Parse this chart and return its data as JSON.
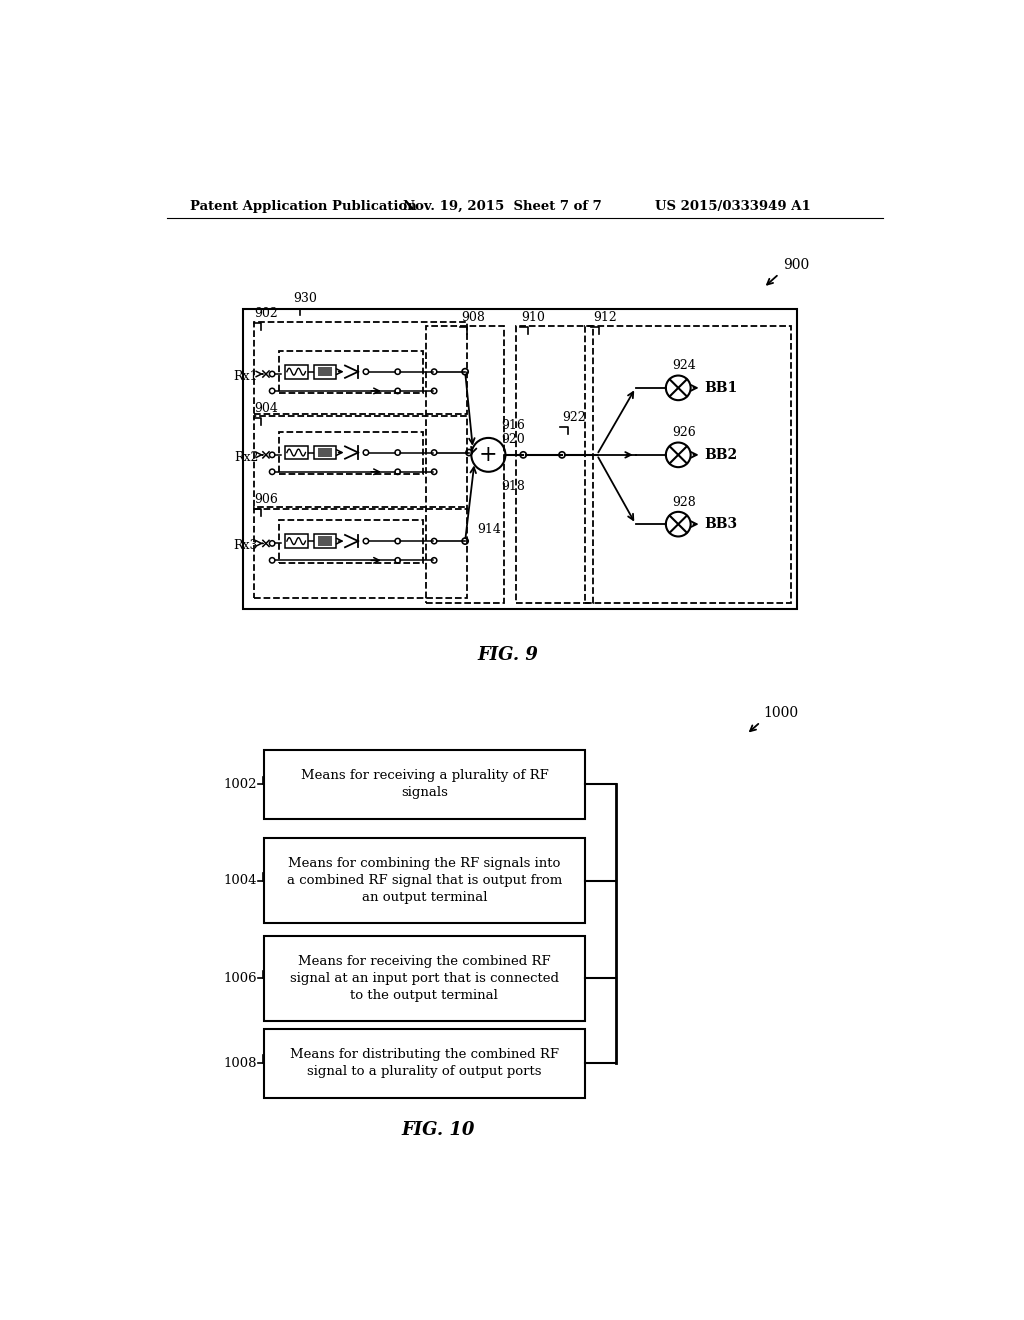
{
  "bg_color": "#ffffff",
  "header_left": "Patent Application Publication",
  "header_mid": "Nov. 19, 2015  Sheet 7 of 7",
  "header_right": "US 2015/0333949 A1",
  "fig9_label": "FIG. 9",
  "fig10_label": "FIG. 10",
  "label_900": "900",
  "label_930": "930",
  "label_902": "902",
  "label_904": "904",
  "label_906": "906",
  "label_908": "908",
  "label_910": "910",
  "label_912": "912",
  "label_914": "914",
  "label_916": "916",
  "label_918": "918",
  "label_920": "920",
  "label_922": "922",
  "label_924": "924",
  "label_926": "926",
  "label_928": "928",
  "label_rx1": "Rx1",
  "label_rx2": "Rx2",
  "label_rx3": "Rx3",
  "label_bb1": "BB1",
  "label_bb2": "BB2",
  "label_bb3": "BB3",
  "label_1000": "1000",
  "label_1002": "1002",
  "label_1004": "1004",
  "label_1006": "1006",
  "label_1008": "1008",
  "box1002_text": "Means for receiving a plurality of RF\nsignals",
  "box1004_text": "Means for combining the RF signals into\na combined RF signal that is output from\nan output terminal",
  "box1006_text": "Means for receiving the combined RF\nsignal at an input port that is connected\nto the output terminal",
  "box1008_text": "Means for distributing the combined RF\nsignal to a plurality of output ports"
}
